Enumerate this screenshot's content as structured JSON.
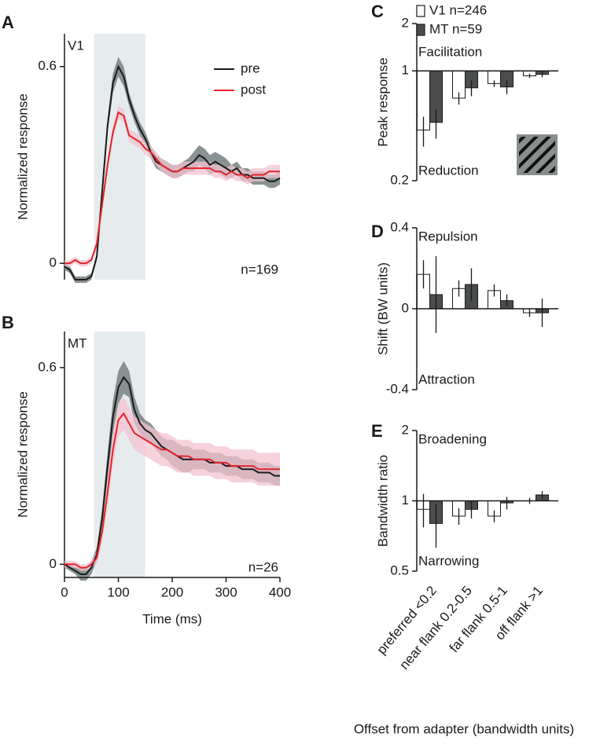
{
  "chart_data": [
    {
      "type": "line",
      "panel_label": "A",
      "label": "V1",
      "note": "n=169",
      "ylabel": "Normalized response",
      "x": [
        0,
        10,
        20,
        30,
        40,
        50,
        60,
        70,
        80,
        90,
        100,
        110,
        120,
        130,
        140,
        150,
        160,
        170,
        180,
        190,
        200,
        210,
        220,
        230,
        240,
        250,
        260,
        270,
        280,
        290,
        300,
        310,
        320,
        330,
        340,
        350,
        360,
        370,
        380,
        390,
        400
      ],
      "xlim": [
        0,
        400
      ],
      "ylim": [
        -0.05,
        0.7
      ],
      "yticks": [
        0,
        0.6
      ],
      "shaded_range": [
        55,
        150
      ],
      "legend": "top-right",
      "series": [
        {
          "name": "pre",
          "color": "#1a1a1a",
          "band_color": "#7d8787",
          "values": [
            -0.01,
            -0.02,
            -0.05,
            -0.05,
            -0.05,
            -0.04,
            0.02,
            0.22,
            0.42,
            0.55,
            0.6,
            0.57,
            0.5,
            0.45,
            0.41,
            0.38,
            0.34,
            0.31,
            0.3,
            0.29,
            0.28,
            0.28,
            0.29,
            0.3,
            0.31,
            0.33,
            0.32,
            0.3,
            0.31,
            0.3,
            0.29,
            0.28,
            0.29,
            0.27,
            0.27,
            0.26,
            0.26,
            0.26,
            0.25,
            0.25,
            0.26
          ],
          "errors": [
            0.01,
            0.01,
            0.01,
            0.01,
            0.01,
            0.01,
            0.01,
            0.02,
            0.02,
            0.03,
            0.03,
            0.03,
            0.02,
            0.02,
            0.02,
            0.02,
            0.02,
            0.02,
            0.02,
            0.02,
            0.02,
            0.02,
            0.02,
            0.02,
            0.03,
            0.03,
            0.03,
            0.03,
            0.03,
            0.03,
            0.03,
            0.02,
            0.02,
            0.02,
            0.02,
            0.02,
            0.02,
            0.02,
            0.02,
            0.02,
            0.02
          ]
        },
        {
          "name": "post",
          "color": "#e2242b",
          "band_color": "#f3c3d0",
          "values": [
            0.0,
            0.0,
            0.01,
            0.0,
            0.0,
            0.01,
            0.06,
            0.18,
            0.3,
            0.4,
            0.46,
            0.45,
            0.39,
            0.38,
            0.37,
            0.35,
            0.34,
            0.32,
            0.3,
            0.29,
            0.28,
            0.28,
            0.29,
            0.29,
            0.29,
            0.29,
            0.29,
            0.29,
            0.28,
            0.28,
            0.27,
            0.28,
            0.27,
            0.27,
            0.26,
            0.27,
            0.27,
            0.27,
            0.28,
            0.28,
            0.28
          ],
          "errors": [
            0.01,
            0.01,
            0.01,
            0.01,
            0.01,
            0.01,
            0.01,
            0.02,
            0.02,
            0.02,
            0.02,
            0.02,
            0.02,
            0.02,
            0.02,
            0.02,
            0.02,
            0.02,
            0.02,
            0.02,
            0.02,
            0.02,
            0.02,
            0.02,
            0.02,
            0.02,
            0.02,
            0.02,
            0.02,
            0.02,
            0.02,
            0.02,
            0.02,
            0.02,
            0.02,
            0.02,
            0.02,
            0.02,
            0.02,
            0.02,
            0.02
          ]
        }
      ]
    },
    {
      "type": "line",
      "panel_label": "B",
      "label": "MT",
      "note": "n=26",
      "ylabel": "Normalized response",
      "xlabel": "Time (ms)",
      "x": [
        0,
        10,
        20,
        30,
        40,
        50,
        60,
        70,
        80,
        90,
        100,
        110,
        120,
        130,
        140,
        150,
        160,
        170,
        180,
        190,
        200,
        210,
        220,
        230,
        240,
        250,
        260,
        270,
        280,
        290,
        300,
        310,
        320,
        330,
        340,
        350,
        360,
        370,
        380,
        390,
        400
      ],
      "xlim": [
        0,
        400
      ],
      "xticks": [
        0,
        100,
        200,
        300,
        400
      ],
      "ylim": [
        -0.04,
        0.71
      ],
      "yticks": [
        0,
        0.6
      ],
      "shaded_range": [
        55,
        150
      ],
      "series": [
        {
          "color": "#1a1a1a",
          "band_color": "#7d8787",
          "values": [
            0.0,
            -0.01,
            -0.02,
            -0.03,
            -0.03,
            -0.01,
            0.03,
            0.14,
            0.3,
            0.45,
            0.54,
            0.57,
            0.55,
            0.47,
            0.43,
            0.41,
            0.4,
            0.38,
            0.36,
            0.35,
            0.34,
            0.33,
            0.32,
            0.32,
            0.32,
            0.32,
            0.32,
            0.31,
            0.31,
            0.31,
            0.3,
            0.3,
            0.3,
            0.29,
            0.29,
            0.29,
            0.28,
            0.28,
            0.28,
            0.27,
            0.27
          ],
          "errors": [
            0.01,
            0.01,
            0.01,
            0.02,
            0.02,
            0.02,
            0.02,
            0.03,
            0.04,
            0.05,
            0.05,
            0.05,
            0.04,
            0.04,
            0.03,
            0.03,
            0.03,
            0.03,
            0.03,
            0.03,
            0.04,
            0.04,
            0.04,
            0.04,
            0.03,
            0.03,
            0.03,
            0.03,
            0.03,
            0.03,
            0.03,
            0.03,
            0.03,
            0.03,
            0.03,
            0.03,
            0.03,
            0.03,
            0.03,
            0.03,
            0.03
          ]
        },
        {
          "color": "#e2242b",
          "band_color": "#f3c3d0",
          "values": [
            0.0,
            0.0,
            0.0,
            -0.01,
            -0.01,
            0.0,
            0.02,
            0.1,
            0.22,
            0.35,
            0.44,
            0.46,
            0.43,
            0.4,
            0.39,
            0.38,
            0.37,
            0.36,
            0.35,
            0.35,
            0.34,
            0.33,
            0.33,
            0.33,
            0.32,
            0.32,
            0.32,
            0.32,
            0.31,
            0.31,
            0.31,
            0.3,
            0.3,
            0.3,
            0.3,
            0.3,
            0.29,
            0.29,
            0.29,
            0.29,
            0.29
          ],
          "errors": [
            0.01,
            0.01,
            0.01,
            0.01,
            0.01,
            0.01,
            0.02,
            0.03,
            0.04,
            0.05,
            0.05,
            0.05,
            0.05,
            0.05,
            0.05,
            0.05,
            0.05,
            0.05,
            0.05,
            0.05,
            0.05,
            0.05,
            0.05,
            0.05,
            0.05,
            0.05,
            0.05,
            0.05,
            0.05,
            0.05,
            0.05,
            0.05,
            0.05,
            0.05,
            0.05,
            0.05,
            0.05,
            0.05,
            0.05,
            0.05,
            0.05
          ]
        }
      ]
    },
    {
      "type": "bar",
      "panel_label": "C",
      "ylabel": "Peak response",
      "log_scale": true,
      "ylim": [
        0.2,
        2
      ],
      "yticks": [
        0.2,
        1,
        2
      ],
      "annotations": [
        "Facilitation",
        "Reduction"
      ],
      "categories": [
        null,
        null,
        null,
        null
      ],
      "series": [
        {
          "name": "V1 n=246",
          "color": "#ffffff",
          "values": [
            0.42,
            0.67,
            0.83,
            0.93
          ],
          "errors": [
            0.09,
            0.06,
            0.04,
            0.03
          ]
        },
        {
          "name": "MT n=59",
          "color": "#4a4c4e",
          "values": [
            0.47,
            0.78,
            0.79,
            0.95
          ],
          "errors": [
            0.1,
            0.09,
            0.08,
            0.04
          ]
        }
      ]
    },
    {
      "type": "bar",
      "panel_label": "D",
      "ylabel": "Shift (BW units)",
      "ylim": [
        -0.4,
        0.4
      ],
      "yticks": [
        -0.4,
        0,
        0.4
      ],
      "annotations": [
        "Repulsion",
        "Attraction"
      ],
      "categories": [
        null,
        null,
        null,
        null
      ],
      "series": [
        {
          "color": "#ffffff",
          "values": [
            0.17,
            0.1,
            0.09,
            -0.02
          ],
          "errors": [
            0.07,
            0.04,
            0.03,
            0.02
          ]
        },
        {
          "color": "#4a4c4e",
          "values": [
            0.07,
            0.12,
            0.04,
            -0.02
          ],
          "errors": [
            0.19,
            0.08,
            0.03,
            0.07
          ]
        }
      ]
    },
    {
      "type": "bar",
      "panel_label": "E",
      "ylabel": "Bandwidth ratio",
      "log_scale": true,
      "ylim": [
        0.5,
        2
      ],
      "yticks": [
        0.5,
        1,
        2
      ],
      "annotations": [
        "Broadening",
        "Narrowing"
      ],
      "xlabel": "Offset from adapter (bandwidth units)",
      "categories": [
        "preferred <0.2",
        "near flank 0.2-0.5",
        "far flank 0.5-1",
        "off flank >1"
      ],
      "series": [
        {
          "color": "#ffffff",
          "values": [
            0.92,
            0.86,
            0.86,
            1.0
          ],
          "errors": [
            0.15,
            0.07,
            0.05,
            0.03
          ]
        },
        {
          "color": "#4a4c4e",
          "values": [
            0.8,
            0.92,
            0.98,
            1.06
          ],
          "errors": [
            0.17,
            0.08,
            0.06,
            0.04
          ]
        }
      ]
    }
  ]
}
